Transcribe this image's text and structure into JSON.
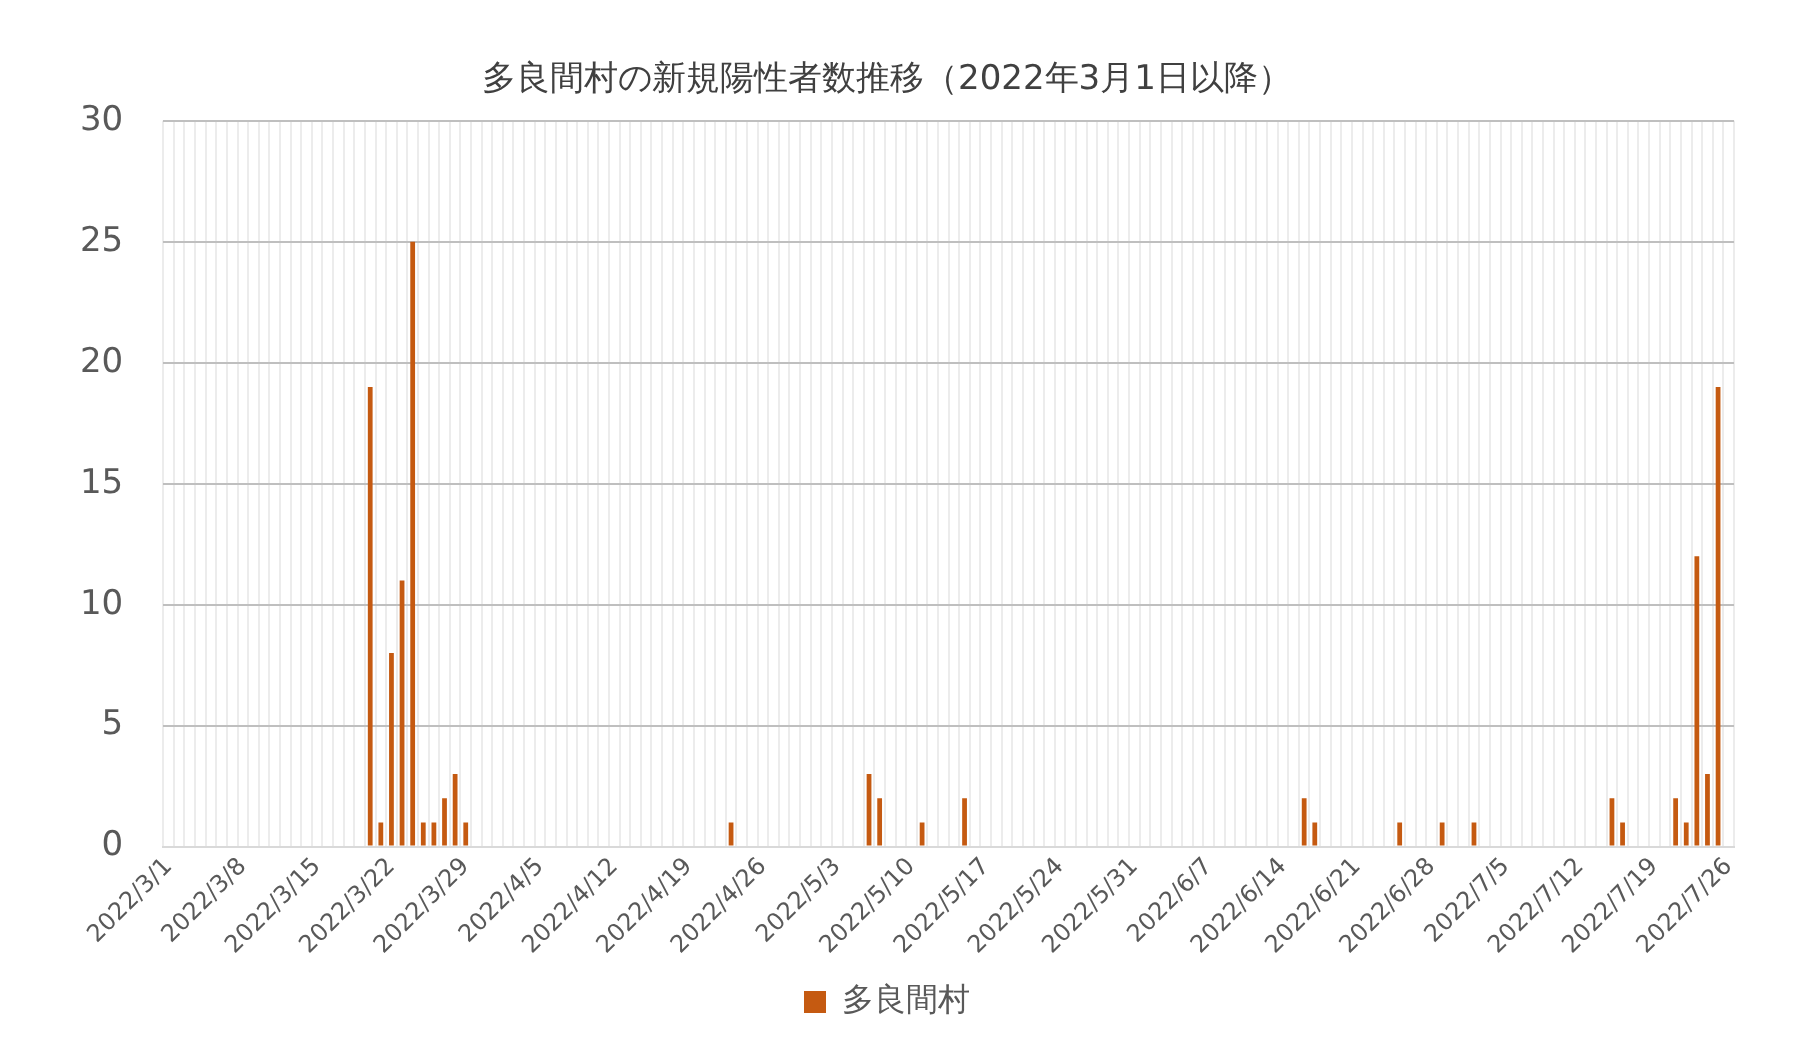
{
  "chart_data": {
    "type": "bar",
    "title": "多良間村の新規陽性者数推移（2022年3月1日以降）",
    "categories": [
      "2022/3/1",
      null,
      null,
      null,
      null,
      null,
      null,
      "2022/3/8",
      null,
      null,
      null,
      null,
      null,
      null,
      "2022/3/15",
      null,
      null,
      null,
      null,
      null,
      null,
      "2022/3/22",
      null,
      null,
      null,
      null,
      null,
      null,
      "2022/3/29",
      null,
      null,
      null,
      null,
      null,
      null,
      "2022/4/5",
      null,
      null,
      null,
      null,
      null,
      null,
      "2022/4/12",
      null,
      null,
      null,
      null,
      null,
      null,
      "2022/4/19",
      null,
      null,
      null,
      null,
      null,
      null,
      "2022/4/26",
      null,
      null,
      null,
      null,
      null,
      null,
      "2022/5/3",
      null,
      null,
      null,
      null,
      null,
      null,
      "2022/5/10",
      null,
      null,
      null,
      null,
      null,
      null,
      "2022/5/17",
      null,
      null,
      null,
      null,
      null,
      null,
      "2022/5/24",
      null,
      null,
      null,
      null,
      null,
      null,
      "2022/5/31",
      null,
      null,
      null,
      null,
      null,
      null,
      "2022/6/7",
      null,
      null,
      null,
      null,
      null,
      null,
      "2022/6/14",
      null,
      null,
      null,
      null,
      null,
      null,
      "2022/6/21",
      null,
      null,
      null,
      null,
      null,
      null,
      "2022/6/28",
      null,
      null,
      null,
      null,
      null,
      null,
      "2022/7/5",
      null,
      null,
      null,
      null,
      null,
      null,
      "2022/7/12",
      null,
      null,
      null,
      null,
      null,
      null,
      "2022/7/19",
      null,
      null,
      null,
      null,
      null,
      null,
      "2022/7/26"
    ],
    "series": [
      {
        "name": "多良間村",
        "color": "#c55a11",
        "values": [
          0,
          0,
          0,
          0,
          0,
          0,
          0,
          0,
          0,
          0,
          0,
          0,
          0,
          0,
          0,
          0,
          0,
          0,
          0,
          19,
          1,
          8,
          11,
          25,
          1,
          1,
          2,
          3,
          1,
          0,
          0,
          0,
          0,
          0,
          0,
          0,
          0,
          0,
          0,
          0,
          0,
          0,
          0,
          0,
          0,
          0,
          0,
          0,
          0,
          0,
          0,
          0,
          0,
          1,
          0,
          0,
          0,
          0,
          0,
          0,
          0,
          0,
          0,
          0,
          0,
          0,
          3,
          2,
          0,
          0,
          0,
          1,
          0,
          0,
          0,
          2,
          0,
          0,
          0,
          0,
          0,
          0,
          0,
          0,
          0,
          0,
          0,
          0,
          0,
          0,
          0,
          0,
          0,
          0,
          0,
          0,
          0,
          0,
          0,
          0,
          0,
          0,
          0,
          0,
          0,
          0,
          0,
          2,
          1,
          0,
          0,
          0,
          0,
          0,
          0,
          0,
          1,
          0,
          0,
          0,
          1,
          0,
          0,
          1,
          0,
          0,
          0,
          0,
          0,
          0,
          0,
          0,
          0,
          0,
          0,
          0,
          2,
          1,
          0,
          0,
          0,
          0,
          2,
          1,
          12,
          3,
          19,
          0
        ]
      }
    ],
    "ylim": [
      0,
      30
    ],
    "yticks": [
      0,
      5,
      10,
      15,
      20,
      25,
      30
    ],
    "grid": true,
    "legend": "bottom"
  }
}
